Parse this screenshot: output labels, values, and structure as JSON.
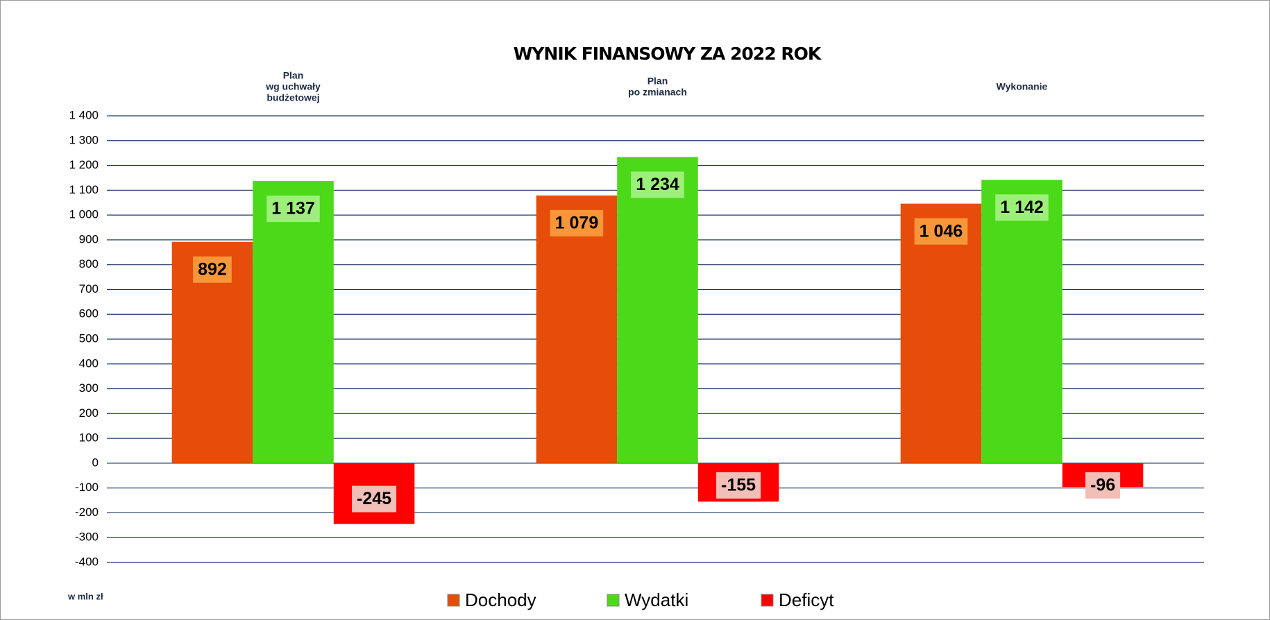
{
  "chart_data": {
    "type": "bar",
    "title": "WYNIK FINANSOWY ZA 2022 ROK",
    "unit": "w mln zł",
    "categories": [
      [
        "Plan",
        "wg uchwały",
        "budżetowej"
      ],
      [
        "Plan",
        "po zmianach"
      ],
      [
        "Wykonanie"
      ]
    ],
    "series": [
      {
        "name": "Dochody",
        "color": "#e64d0a",
        "label_color": "#f7973a",
        "values": [
          892,
          1079,
          1046
        ],
        "value_labels": [
          "892",
          "1 079",
          "1 046"
        ]
      },
      {
        "name": "Wydatki",
        "color": "#4cd91a",
        "label_color": "#9cf07a",
        "values": [
          1137,
          1234,
          1142
        ],
        "value_labels": [
          "1 137",
          "1 234",
          "1 142"
        ]
      },
      {
        "name": "Deficyt",
        "color": "#ff0000",
        "label_color": "#f2bfb8",
        "values": [
          -245,
          -155,
          -96
        ],
        "value_labels": [
          "-245",
          "-155",
          "-96"
        ]
      }
    ],
    "ylim": [
      -400,
      1400
    ],
    "yticks": [
      -400,
      -300,
      -200,
      -100,
      0,
      100,
      200,
      300,
      400,
      500,
      600,
      700,
      800,
      900,
      {
        "value": 1000,
        "label": "1 000"
      },
      {
        "value": 1100,
        "label": "1 100"
      },
      {
        "value": 1200,
        "label": "1 200"
      },
      {
        "value": 1300,
        "label": "1 300"
      },
      {
        "value": 1400,
        "label": "1 400"
      }
    ],
    "grid": true,
    "legend": "bottom"
  }
}
